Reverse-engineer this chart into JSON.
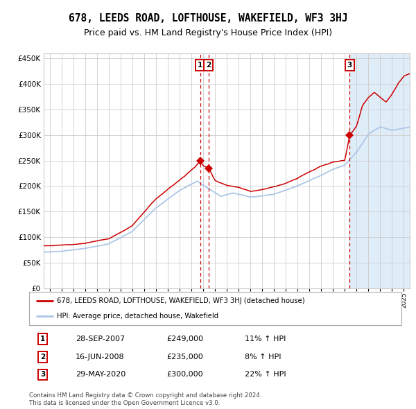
{
  "title": "678, LEEDS ROAD, LOFTHOUSE, WAKEFIELD, WF3 3HJ",
  "subtitle": "Price paid vs. HM Land Registry's House Price Index (HPI)",
  "legend_label_red": "678, LEEDS ROAD, LOFTHOUSE, WAKEFIELD, WF3 3HJ (detached house)",
  "legend_label_blue": "HPI: Average price, detached house, Wakefield",
  "footer1": "Contains HM Land Registry data © Crown copyright and database right 2024.",
  "footer2": "This data is licensed under the Open Government Licence v3.0.",
  "transactions": [
    {
      "num": 1,
      "date": "28-SEP-2007",
      "price": 249000,
      "pct": "11%",
      "dir": "↑",
      "x_year": 2007.75
    },
    {
      "num": 2,
      "date": "16-JUN-2008",
      "price": 235000,
      "pct": "8%",
      "dir": "↑",
      "x_year": 2008.46
    },
    {
      "num": 3,
      "date": "29-MAY-2020",
      "price": 300000,
      "pct": "22%",
      "dir": "↑",
      "x_year": 2020.41
    }
  ],
  "ylim": [
    0,
    460000
  ],
  "xlim_start": 1994.5,
  "xlim_end": 2025.5,
  "hpi_color": "#adc6e8",
  "price_color": "#cc0000",
  "vline_color": "#cc0000",
  "grid_color": "#cccccc",
  "background_color": "#ffffff",
  "shaded_region_color": "#daeaf8",
  "title_fontsize": 10.5,
  "subtitle_fontsize": 9,
  "yticks": [
    0,
    50000,
    100000,
    150000,
    200000,
    250000,
    300000,
    350000,
    400000,
    450000
  ]
}
